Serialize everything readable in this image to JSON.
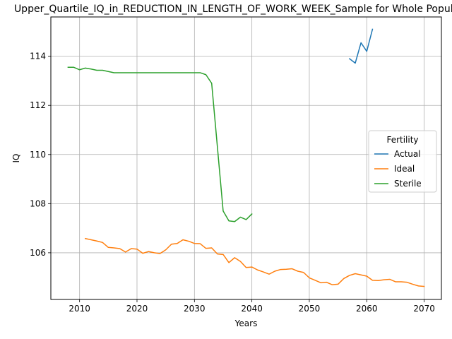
{
  "chart_data": {
    "type": "line",
    "title": "Upper_Quartile_IQ_in_REDUCTION_IN_LENGTH_OF_WORK_WEEK_Sample for Whole Population",
    "xlabel": "Years",
    "ylabel": "IQ",
    "xlim": [
      2005,
      2073
    ],
    "ylim": [
      104.1,
      115.6
    ],
    "xticks": [
      2010,
      2020,
      2030,
      2040,
      2050,
      2060,
      2070
    ],
    "yticks": [
      106,
      108,
      110,
      112,
      114
    ],
    "grid": true,
    "legend": {
      "title": "Fertility",
      "position": "center-right"
    },
    "series": [
      {
        "name": "Actual",
        "color": "#1f77b4",
        "x": [
          2057,
          2058,
          2059,
          2060,
          2061
        ],
        "y": [
          113.9,
          113.72,
          114.55,
          114.2,
          115.1
        ]
      },
      {
        "name": "Ideal",
        "color": "#ff7f0e",
        "x": [
          2011,
          2012,
          2013,
          2014,
          2015,
          2016,
          2017,
          2018,
          2019,
          2020,
          2021,
          2022,
          2023,
          2024,
          2025,
          2026,
          2027,
          2028,
          2029,
          2030,
          2031,
          2032,
          2033,
          2034,
          2035,
          2036,
          2037,
          2038,
          2039,
          2040,
          2041,
          2042,
          2043,
          2044,
          2045,
          2046,
          2047,
          2048,
          2049,
          2050,
          2051,
          2052,
          2053,
          2054,
          2055,
          2056,
          2057,
          2058,
          2059,
          2060,
          2061,
          2062,
          2063,
          2064,
          2065,
          2066,
          2067,
          2068,
          2069,
          2070
        ],
        "y": [
          106.58,
          106.53,
          106.48,
          106.42,
          106.22,
          106.2,
          106.17,
          106.03,
          106.17,
          106.15,
          105.98,
          106.05,
          106.0,
          105.97,
          106.12,
          106.35,
          106.38,
          106.53,
          106.47,
          106.38,
          106.37,
          106.18,
          106.2,
          105.95,
          105.93,
          105.6,
          105.8,
          105.65,
          105.4,
          105.42,
          105.3,
          105.22,
          105.13,
          105.25,
          105.32,
          105.33,
          105.35,
          105.25,
          105.2,
          104.98,
          104.88,
          104.78,
          104.8,
          104.7,
          104.72,
          104.95,
          105.08,
          105.15,
          105.1,
          105.05,
          104.88,
          104.87,
          104.9,
          104.92,
          104.82,
          104.82,
          104.8,
          104.72,
          104.65,
          104.63
        ]
      },
      {
        "name": "Sterile",
        "color": "#2ca02c",
        "x": [
          2008,
          2009,
          2010,
          2011,
          2012,
          2013,
          2014,
          2015,
          2016,
          2017,
          2018,
          2019,
          2020,
          2021,
          2022,
          2023,
          2024,
          2025,
          2026,
          2027,
          2028,
          2029,
          2030,
          2031,
          2032,
          2033,
          2034,
          2035,
          2036,
          2037,
          2038,
          2039,
          2040
        ],
        "y": [
          113.55,
          113.55,
          113.45,
          113.52,
          113.48,
          113.43,
          113.43,
          113.38,
          113.33,
          113.33,
          113.33,
          113.33,
          113.33,
          113.33,
          113.33,
          113.33,
          113.33,
          113.33,
          113.33,
          113.33,
          113.33,
          113.33,
          113.33,
          113.33,
          113.25,
          112.9,
          110.3,
          107.7,
          107.3,
          107.27,
          107.45,
          107.35,
          107.58
        ]
      }
    ]
  }
}
